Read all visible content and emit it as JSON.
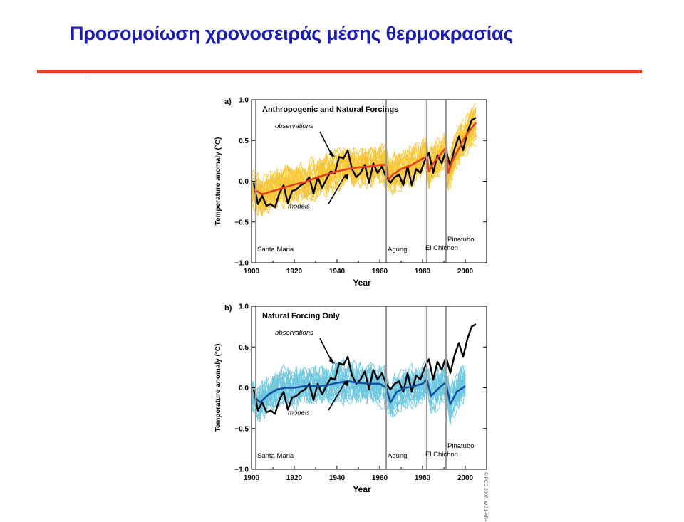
{
  "slide": {
    "title": "Προσομοίωση χρονοσειράς μέσης θερμοκρασίας",
    "copyright": "©IPCC 2007: WG1-AR4"
  },
  "colors": {
    "title": "#1a1ab8",
    "rule": "#e8401e",
    "observations": "#000000",
    "models_a_ensemble": "#f7c531",
    "models_a_mean": "#e8401e",
    "models_b_ensemble": "#6cc7df",
    "models_b_mean": "#1450a0",
    "volcano_line": "#9a9a9a"
  },
  "chart_data": [
    {
      "type": "line",
      "panel_label": "a)",
      "title": "Anthropogenic and Natural Forcings",
      "xlabel": "Year",
      "ylabel": "Temperature anomaly (°C)",
      "xlim": [
        1900,
        2010
      ],
      "ylim": [
        -1.0,
        1.0
      ],
      "xticks": [
        1900,
        1920,
        1940,
        1960,
        1980,
        2000
      ],
      "yticks": [
        -1.0,
        -0.5,
        0.0,
        0.5,
        1.0
      ],
      "ytick_labels": [
        "−1.0",
        "−0.5",
        "0.0",
        "0.5",
        "1.0"
      ],
      "annotations": [
        "observations",
        "models"
      ],
      "volcanoes": [
        {
          "name": "Santa Maria",
          "year": 1902
        },
        {
          "name": "Agung",
          "year": 1963
        },
        {
          "name": "El Chichon",
          "year": 1982
        },
        {
          "name": "Pinatubo",
          "year": 1991
        }
      ],
      "series": [
        {
          "name": "observations",
          "color": "#000000",
          "x": [
            1901,
            1903,
            1905,
            1907,
            1909,
            1911,
            1913,
            1915,
            1917,
            1919,
            1921,
            1923,
            1925,
            1927,
            1929,
            1931,
            1933,
            1935,
            1937,
            1939,
            1941,
            1943,
            1945,
            1947,
            1949,
            1951,
            1953,
            1955,
            1957,
            1959,
            1961,
            1963,
            1965,
            1967,
            1969,
            1971,
            1973,
            1975,
            1977,
            1979,
            1981,
            1983,
            1985,
            1987,
            1989,
            1991,
            1993,
            1995,
            1997,
            1999,
            2001,
            2003,
            2005
          ],
          "y": [
            -0.02,
            -0.28,
            -0.18,
            -0.3,
            -0.28,
            -0.32,
            -0.15,
            -0.05,
            -0.27,
            -0.12,
            -0.1,
            -0.05,
            -0.02,
            0.05,
            -0.15,
            0.05,
            -0.08,
            0.02,
            0.12,
            0.1,
            0.3,
            0.28,
            0.38,
            0.15,
            0.05,
            0.1,
            0.2,
            -0.02,
            0.22,
            0.1,
            0.18,
            0.05,
            -0.02,
            0.05,
            0.08,
            -0.05,
            0.18,
            -0.05,
            0.15,
            0.1,
            0.25,
            0.35,
            0.1,
            0.32,
            0.22,
            0.38,
            0.18,
            0.4,
            0.55,
            0.38,
            0.6,
            0.75,
            0.78
          ]
        },
        {
          "name": "models",
          "color": "#e8401e",
          "x": [
            1901,
            1905,
            1910,
            1915,
            1920,
            1925,
            1930,
            1935,
            1940,
            1945,
            1950,
            1955,
            1960,
            1963,
            1964,
            1966,
            1970,
            1975,
            1980,
            1982,
            1983,
            1985,
            1990,
            1991,
            1992,
            1994,
            2000,
            2005
          ],
          "y": [
            -0.1,
            -0.16,
            -0.12,
            -0.08,
            -0.04,
            -0.01,
            0.04,
            0.08,
            0.12,
            0.15,
            0.17,
            0.18,
            0.2,
            0.2,
            0.02,
            0.08,
            0.15,
            0.2,
            0.28,
            0.3,
            0.12,
            0.22,
            0.38,
            0.42,
            0.1,
            0.25,
            0.55,
            0.72
          ]
        }
      ]
    },
    {
      "type": "line",
      "panel_label": "b)",
      "title": "Natural Forcing Only",
      "xlabel": "Year",
      "ylabel": "Temperature anomaly (°C)",
      "xlim": [
        1900,
        2010
      ],
      "ylim": [
        -1.0,
        1.0
      ],
      "xticks": [
        1900,
        1920,
        1940,
        1960,
        1980,
        2000
      ],
      "yticks": [
        -1.0,
        -0.5,
        0.0,
        0.5,
        1.0
      ],
      "ytick_labels": [
        "−1.0",
        "−0.5",
        "0.0",
        "0.5",
        "1.0"
      ],
      "annotations": [
        "observations",
        "models"
      ],
      "volcanoes": [
        {
          "name": "Santa Maria",
          "year": 1902
        },
        {
          "name": "Agung",
          "year": 1963
        },
        {
          "name": "El Chichon",
          "year": 1982
        },
        {
          "name": "Pinatubo",
          "year": 1991
        }
      ],
      "series": [
        {
          "name": "observations",
          "color": "#000000",
          "x": [
            1901,
            1903,
            1905,
            1907,
            1909,
            1911,
            1913,
            1915,
            1917,
            1919,
            1921,
            1923,
            1925,
            1927,
            1929,
            1931,
            1933,
            1935,
            1937,
            1939,
            1941,
            1943,
            1945,
            1947,
            1949,
            1951,
            1953,
            1955,
            1957,
            1959,
            1961,
            1963,
            1965,
            1967,
            1969,
            1971,
            1973,
            1975,
            1977,
            1979,
            1981,
            1983,
            1985,
            1987,
            1989,
            1991,
            1993,
            1995,
            1997,
            1999,
            2001,
            2003,
            2005
          ],
          "y": [
            -0.02,
            -0.28,
            -0.18,
            -0.3,
            -0.28,
            -0.32,
            -0.15,
            -0.05,
            -0.27,
            -0.12,
            -0.1,
            -0.05,
            -0.02,
            0.05,
            -0.15,
            0.05,
            -0.08,
            0.02,
            0.12,
            0.1,
            0.3,
            0.28,
            0.38,
            0.15,
            0.05,
            0.1,
            0.2,
            -0.02,
            0.22,
            0.1,
            0.18,
            0.05,
            -0.02,
            0.05,
            0.08,
            -0.05,
            0.18,
            -0.05,
            0.15,
            0.1,
            0.25,
            0.35,
            0.1,
            0.32,
            0.22,
            0.38,
            0.18,
            0.4,
            0.55,
            0.38,
            0.6,
            0.75,
            0.78
          ]
        },
        {
          "name": "models",
          "color": "#1450a0",
          "x": [
            1901,
            1904,
            1908,
            1912,
            1916,
            1920,
            1925,
            1930,
            1935,
            1940,
            1945,
            1950,
            1955,
            1960,
            1963,
            1965,
            1968,
            1972,
            1976,
            1980,
            1982,
            1984,
            1987,
            1990,
            1991,
            1993,
            1996,
            2000
          ],
          "y": [
            -0.1,
            -0.18,
            -0.08,
            -0.02,
            0.0,
            0.0,
            0.02,
            0.02,
            0.03,
            0.06,
            0.08,
            0.06,
            0.05,
            0.05,
            0.0,
            -0.18,
            -0.05,
            0.0,
            0.02,
            0.05,
            0.1,
            -0.1,
            -0.02,
            0.05,
            0.05,
            -0.2,
            -0.05,
            0.02
          ]
        }
      ]
    }
  ]
}
